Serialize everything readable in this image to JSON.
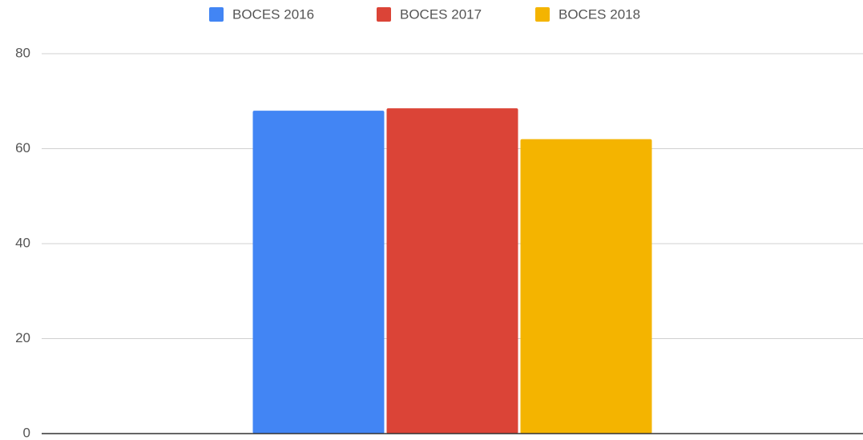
{
  "chart_data": {
    "type": "bar",
    "categories": [
      null
    ],
    "series": [
      {
        "name": "BOCES 2016",
        "color": "#4285f4",
        "values": [
          68
        ]
      },
      {
        "name": "BOCES 2017",
        "color": "#db4437",
        "values": [
          68.5
        ]
      },
      {
        "name": "BOCES 2018",
        "color": "#f4b400",
        "values": [
          62
        ]
      }
    ],
    "ylim": [
      0,
      80
    ],
    "yticks": [
      0,
      20,
      40,
      60,
      80
    ],
    "grid": true,
    "legend": "top"
  }
}
